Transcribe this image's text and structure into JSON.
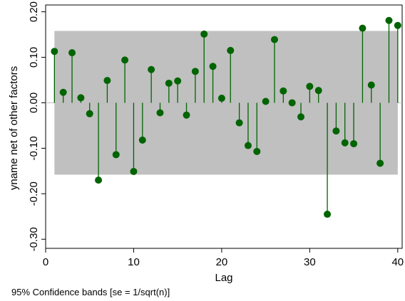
{
  "chart_data": {
    "type": "stem",
    "xlabel": "Lag",
    "ylabel": "yname net of other factors",
    "note": "95% Confidence bands [se = 1/sqrt(n)]",
    "xlim": [
      0,
      40.5
    ],
    "ylim": [
      -0.32,
      0.215
    ],
    "x_ticks": [
      0,
      10,
      20,
      30,
      40
    ],
    "x_tick_labels": [
      "0",
      "10",
      "20",
      "30",
      "40"
    ],
    "y_ticks": [
      -0.3,
      -0.2,
      -0.1,
      0.0,
      0.1,
      0.2
    ],
    "y_tick_labels": [
      "-0.30",
      "-0.20",
      "-0.10",
      "0.00",
      "0.10",
      "0.20"
    ],
    "confidence_band": [
      -0.158,
      0.158
    ],
    "band_color": "#c0c0c0",
    "marker_color": "#006400",
    "zero_line_color": "#bebebe",
    "x": [
      1,
      2,
      3,
      4,
      5,
      6,
      7,
      8,
      9,
      10,
      11,
      12,
      13,
      14,
      15,
      16,
      17,
      18,
      19,
      20,
      21,
      22,
      23,
      24,
      25,
      26,
      27,
      28,
      29,
      30,
      31,
      32,
      33,
      34,
      35,
      36,
      37,
      38,
      39,
      40
    ],
    "values": [
      0.113,
      0.023,
      0.11,
      0.011,
      -0.024,
      -0.17,
      0.049,
      -0.114,
      0.094,
      -0.151,
      -0.082,
      0.073,
      -0.022,
      0.043,
      0.048,
      -0.027,
      0.069,
      0.151,
      0.08,
      0.01,
      0.115,
      -0.044,
      -0.094,
      -0.107,
      0.003,
      0.139,
      0.026,
      0.0,
      -0.031,
      0.036,
      0.027,
      -0.245,
      -0.062,
      -0.088,
      -0.09,
      0.164,
      0.039,
      -0.133,
      0.181,
      0.17
    ]
  }
}
